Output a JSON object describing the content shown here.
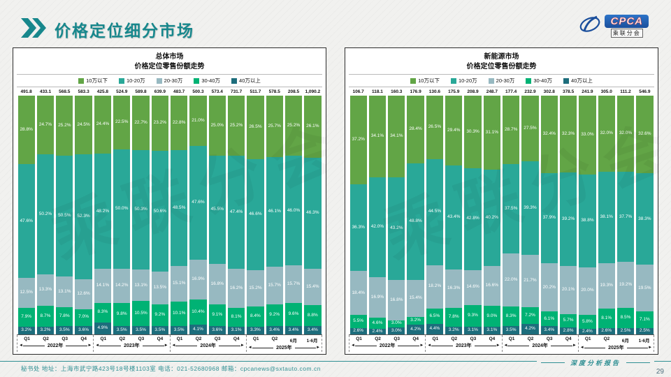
{
  "header": {
    "title": "价格定位细分市场"
  },
  "logo": {
    "text": "CPCA",
    "subtext": "乘联分会"
  },
  "footer": {
    "text": "秘书处  地址：上海市武宁路423号18号楼1103室  电话：021-52680968   邮箱：cpcanews@sxtauto.com.cn",
    "report_label": "深度分析报告",
    "page_number": "29"
  },
  "colors": {
    "accent_teal": "#17878c",
    "under_100k": "#62a546",
    "k100_200": "#29a898",
    "k200_300": "#97b9c1",
    "k300_400": "#00b274",
    "over_400k": "#1d6d7c"
  },
  "chart_data": [
    {
      "type": "bar",
      "id": "overall-market",
      "title": "总体市场",
      "subtitle": "价格定位零售份额走势",
      "stacked_percent": true,
      "categories": [
        "Q1",
        "Q2",
        "Q3",
        "Q4",
        "Q1",
        "Q2",
        "Q3",
        "Q4",
        "Q1",
        "Q2",
        "Q3",
        "Q4",
        "Q1",
        "Q2",
        "6月",
        "1-6月"
      ],
      "year_groups": [
        {
          "label": "2022年",
          "count": 4
        },
        {
          "label": "2023年",
          "count": 4
        },
        {
          "label": "2024年",
          "count": 4
        },
        {
          "label": "2025年",
          "count": 4
        }
      ],
      "totals": [
        491.8,
        433.1,
        568.5,
        583.3,
        425.8,
        524.9,
        589.8,
        639.9,
        483.7,
        500.3,
        573.4,
        731.7,
        511.7,
        578.5,
        208.5,
        1090.2
      ],
      "series": [
        {
          "name": "10万以下",
          "color": "#62a546",
          "values": [
            28.8,
            24.7,
            25.2,
            24.5,
            24.4,
            22.5,
            22.7,
            23.2,
            22.8,
            21.0,
            25.0,
            25.2,
            26.5,
            25.7,
            25.2,
            26.1
          ]
        },
        {
          "name": "10-20万",
          "color": "#29a898",
          "values": [
            47.6,
            50.2,
            50.5,
            52.3,
            48.2,
            50.0,
            50.3,
            50.6,
            48.5,
            47.6,
            45.5,
            47.4,
            46.6,
            46.1,
            46.0,
            46.3
          ]
        },
        {
          "name": "20-30万",
          "color": "#97b9c1",
          "values": [
            12.5,
            13.3,
            13.1,
            12.6,
            14.1,
            14.2,
            13.1,
            13.5,
            15.1,
            16.9,
            16.8,
            16.2,
            15.2,
            15.7,
            15.7,
            15.4
          ]
        },
        {
          "name": "30-40万",
          "color": "#00b274",
          "values": [
            7.9,
            8.7,
            7.8,
            7.0,
            8.3,
            9.8,
            10.5,
            9.2,
            10.1,
            10.4,
            9.1,
            8.1,
            8.4,
            9.2,
            9.6,
            8.8
          ]
        },
        {
          "name": "40万以上",
          "color": "#1d6d7c",
          "values": [
            3.2,
            3.2,
            3.5,
            3.6,
            4.9,
            3.5,
            3.5,
            3.5,
            3.5,
            4.1,
            3.6,
            3.1,
            3.3,
            3.4,
            3.4,
            3.4
          ]
        }
      ]
    },
    {
      "type": "bar",
      "id": "nev-market",
      "title": "新能源市场",
      "subtitle": "价格定位零售份额走势",
      "stacked_percent": true,
      "categories": [
        "Q1",
        "Q2",
        "Q3",
        "Q4",
        "Q1",
        "Q2",
        "Q3",
        "Q4",
        "Q1",
        "Q2",
        "Q3",
        "Q4",
        "Q1",
        "Q2",
        "6月",
        "1-6月"
      ],
      "year_groups": [
        {
          "label": "2022年",
          "count": 4
        },
        {
          "label": "2023年",
          "count": 4
        },
        {
          "label": "2024年",
          "count": 4
        },
        {
          "label": "2025年",
          "count": 4
        }
      ],
      "totals": [
        106.7,
        118.1,
        160.3,
        176.9,
        130.6,
        175.9,
        208.9,
        248.7,
        177.4,
        232.9,
        302.8,
        378.5,
        241.9,
        305.0,
        111.2,
        546.9
      ],
      "series": [
        {
          "name": "10万以下",
          "color": "#62a546",
          "values": [
            37.2,
            34.1,
            34.1,
            28.4,
            26.5,
            29.4,
            30.3,
            31.1,
            28.7,
            27.5,
            32.4,
            32.3,
            33.0,
            32.0,
            32.0,
            32.6
          ]
        },
        {
          "name": "10-20万",
          "color": "#29a898",
          "values": [
            36.3,
            42.0,
            43.2,
            48.8,
            44.5,
            43.4,
            42.8,
            40.2,
            37.5,
            39.3,
            37.9,
            39.2,
            38.8,
            38.1,
            37.7,
            38.3
          ]
        },
        {
          "name": "20-30万",
          "color": "#97b9c1",
          "values": [
            18.4,
            16.9,
            16.8,
            15.4,
            18.2,
            16.3,
            14.6,
            16.6,
            22.0,
            21.7,
            20.2,
            20.1,
            20.0,
            19.3,
            19.2,
            19.5
          ]
        },
        {
          "name": "30-40万",
          "color": "#00b274",
          "values": [
            5.5,
            4.6,
            3.0,
            3.2,
            6.5,
            7.8,
            9.3,
            9.0,
            8.3,
            7.2,
            6.1,
            5.7,
            5.8,
            8.1,
            8.5,
            7.1
          ]
        },
        {
          "name": "40万以上",
          "color": "#1d6d7c",
          "values": [
            2.6,
            2.4,
            3.0,
            4.2,
            4.4,
            3.2,
            3.1,
            3.1,
            3.5,
            4.2,
            3.4,
            2.8,
            2.4,
            2.6,
            2.5,
            2.5
          ]
        }
      ]
    }
  ]
}
